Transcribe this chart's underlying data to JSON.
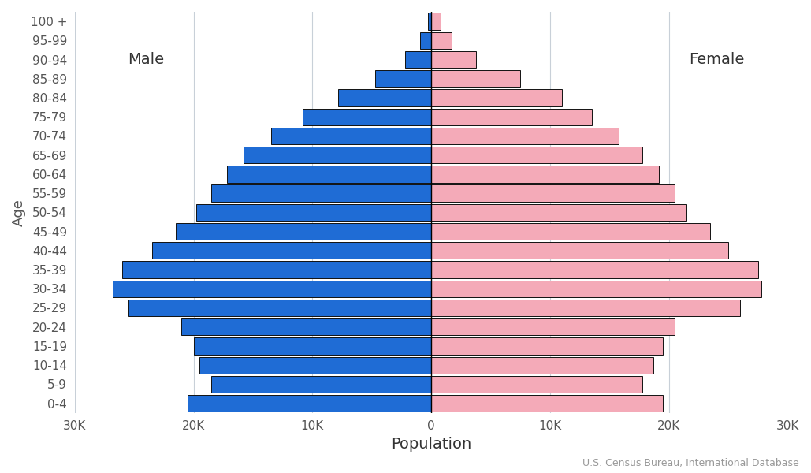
{
  "xlabel": "Population",
  "ylabel": "Age",
  "age_groups": [
    "0-4",
    "5-9",
    "10-14",
    "15-19",
    "20-24",
    "25-29",
    "30-34",
    "35-39",
    "40-44",
    "45-49",
    "50-54",
    "55-59",
    "60-64",
    "65-69",
    "70-74",
    "75-79",
    "80-84",
    "85-89",
    "90-94",
    "95-99",
    "100 +"
  ],
  "male": [
    20500,
    18500,
    19500,
    20000,
    21000,
    25500,
    26800,
    26000,
    23500,
    21500,
    19800,
    18500,
    17200,
    15800,
    13500,
    10800,
    7800,
    4700,
    2200,
    900,
    300
  ],
  "female": [
    19500,
    17800,
    18700,
    19500,
    20500,
    26000,
    27800,
    27500,
    25000,
    23500,
    21500,
    20500,
    19200,
    17800,
    15800,
    13500,
    11000,
    7500,
    3800,
    1700,
    800
  ],
  "male_color": "#1f6cd5",
  "female_color": "#f4aab8",
  "bar_edge_color": "#111111",
  "xlim": 30000,
  "xticks": [
    -30000,
    -20000,
    -10000,
    0,
    10000,
    20000,
    30000
  ],
  "xtick_labels": [
    "30K",
    "20K",
    "10K",
    "0",
    "10K",
    "20K",
    "30K"
  ],
  "background_color": "#ffffff",
  "grid_color": "#c8d0d8",
  "male_label": "Male",
  "female_label": "Female",
  "source_text": "U.S. Census Bureau, International Database",
  "label_fontsize": 13,
  "tick_fontsize": 11,
  "source_fontsize": 9,
  "male_label_fontsize": 14,
  "female_label_fontsize": 14
}
